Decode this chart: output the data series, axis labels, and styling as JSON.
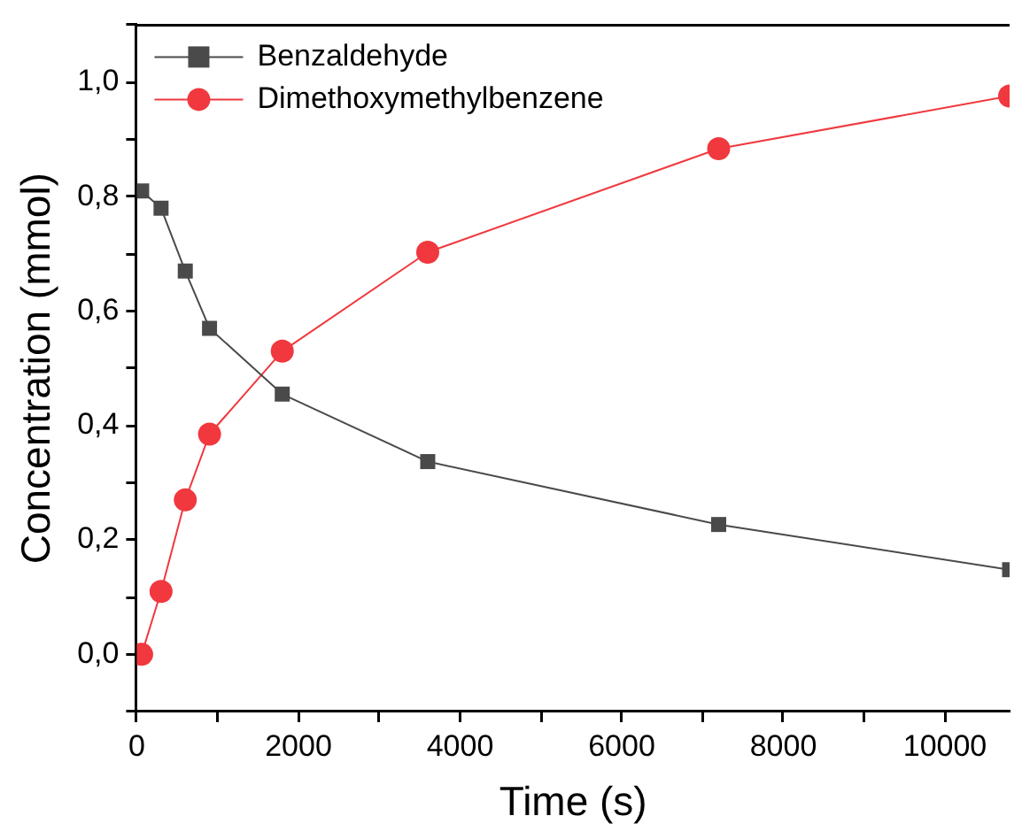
{
  "chart_data": {
    "type": "line",
    "xlabel": "Time (s)",
    "ylabel": "Concentration (mmol)",
    "xlim": [
      0,
      10800
    ],
    "ylim": [
      -0.1,
      1.1
    ],
    "xticks": [
      0,
      {
        "value": 1000,
        "label": null
      },
      2000,
      {
        "value": 3000,
        "label": null
      },
      4000,
      {
        "value": 5000,
        "label": null
      },
      6000,
      {
        "value": 7000,
        "label": null
      },
      8000,
      {
        "value": 9000,
        "label": null
      },
      10000
    ],
    "yticks": [
      {
        "value": -0.1,
        "label": null
      },
      {
        "value": 0,
        "label": "0,0"
      },
      {
        "value": 0.1,
        "label": null
      },
      {
        "value": 0.2,
        "label": "0,2"
      },
      {
        "value": 0.3,
        "label": null
      },
      {
        "value": 0.4,
        "label": "0,4"
      },
      {
        "value": 0.5,
        "label": null
      },
      {
        "value": 0.6,
        "label": "0,6"
      },
      {
        "value": 0.7,
        "label": null
      },
      {
        "value": 0.8,
        "label": "0,8"
      },
      {
        "value": 0.9,
        "label": null
      },
      {
        "value": 1.0,
        "label": "1,0"
      },
      {
        "value": 1.1,
        "label": null
      }
    ],
    "grid": false,
    "legend": "top left",
    "line_style": "solid",
    "series": [
      {
        "name": "Benzaldehyde",
        "color": "#4a4a4a",
        "marker": "square",
        "x": [
          60,
          300,
          600,
          900,
          1800,
          3600,
          7200,
          10800
        ],
        "values": [
          0.81,
          0.78,
          0.67,
          0.57,
          0.455,
          0.337,
          0.227,
          0.148
        ]
      },
      {
        "name": "Dimethoxymethylbenzene",
        "color": "#f0383e",
        "marker": "circle",
        "x": [
          60,
          300,
          600,
          900,
          1800,
          3600,
          7200,
          10800
        ],
        "values": [
          0.0,
          0.11,
          0.27,
          0.385,
          0.53,
          0.703,
          0.884,
          0.976
        ]
      }
    ]
  }
}
